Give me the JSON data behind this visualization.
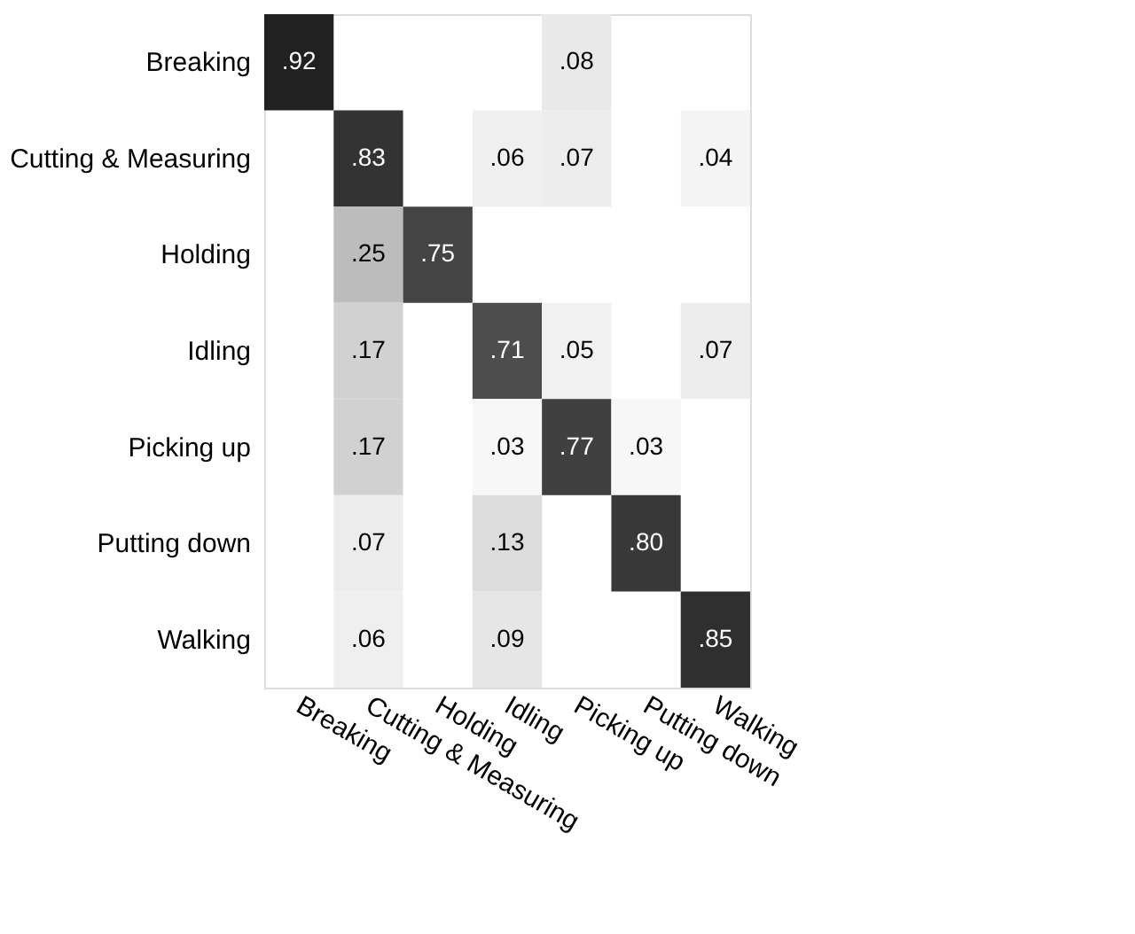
{
  "chart_data": {
    "type": "heatmap",
    "categories": [
      "Breaking",
      "Cutting & Measuring",
      "Holding",
      "Idling",
      "Picking up",
      "Putting down",
      "Walking"
    ],
    "y_categories": [
      "Breaking",
      "Cutting & Measuring",
      "Holding",
      "Idling",
      "Picking up",
      "Putting down",
      "Walking"
    ],
    "cells": [
      [
        0.92,
        null,
        null,
        null,
        0.08,
        null,
        null
      ],
      [
        null,
        0.83,
        null,
        0.06,
        0.07,
        null,
        0.04
      ],
      [
        null,
        0.25,
        0.75,
        null,
        null,
        null,
        null
      ],
      [
        null,
        0.17,
        null,
        0.71,
        0.05,
        null,
        0.07
      ],
      [
        null,
        0.17,
        null,
        0.03,
        0.77,
        0.03,
        null
      ],
      [
        null,
        0.07,
        null,
        0.13,
        null,
        0.8,
        null
      ],
      [
        null,
        0.06,
        null,
        0.09,
        null,
        null,
        0.85
      ]
    ],
    "cell_labels": [
      [
        ".92",
        null,
        null,
        null,
        ".08",
        null,
        null
      ],
      [
        null,
        ".83",
        null,
        ".06",
        ".07",
        null,
        ".04"
      ],
      [
        null,
        ".25",
        ".75",
        null,
        null,
        null,
        null
      ],
      [
        null,
        ".17",
        null,
        ".71",
        ".05",
        null,
        ".07"
      ],
      [
        null,
        ".17",
        null,
        ".03",
        ".77",
        ".03",
        null
      ],
      [
        null,
        ".07",
        null,
        ".13",
        null,
        ".80",
        null
      ],
      [
        null,
        ".06",
        null,
        ".09",
        null,
        null,
        ".85"
      ]
    ]
  }
}
